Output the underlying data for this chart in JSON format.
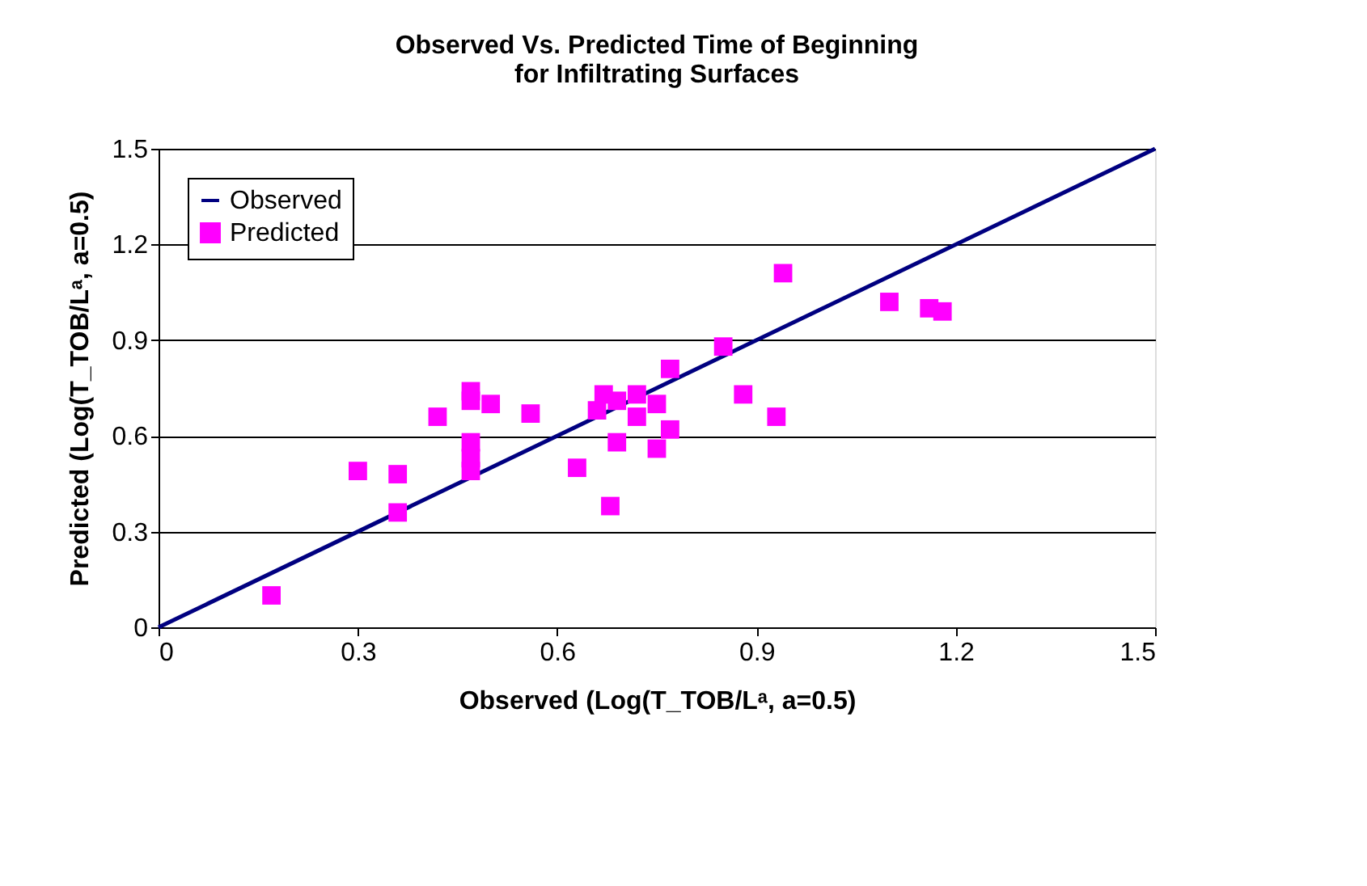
{
  "chart_data": {
    "type": "scatter",
    "title": [
      "Observed Vs. Predicted Time of Beginning",
      "for Infiltrating Surfaces"
    ],
    "xlabel": "Observed (Log(T_TOB/Lᵃ, a=0.5)",
    "ylabel": "Predicted (Log(T_TOB/Lᵃ, a=0.5)",
    "xlim": [
      0,
      1.5
    ],
    "xticks": [
      0,
      0.3,
      0.6,
      0.9,
      1.2,
      1.5
    ],
    "ylim": [
      0,
      1.5
    ],
    "yticks": [
      0,
      0.3,
      0.6,
      0.9,
      1.2,
      1.5
    ],
    "grid": "y",
    "legend": "top left",
    "series": [
      {
        "name": "Observed",
        "type": "line",
        "color": "#000080",
        "marker": "none",
        "line_style": "solid",
        "x": [
          0,
          1.5
        ],
        "values": [
          0,
          1.5
        ]
      },
      {
        "name": "Predicted",
        "color": "#ff00ff",
        "marker": "square",
        "x": [
          0.17,
          0.3,
          0.36,
          0.36,
          0.42,
          0.47,
          0.47,
          0.47,
          0.47,
          0.47,
          0.5,
          0.56,
          0.63,
          0.66,
          0.67,
          0.69,
          0.69,
          0.68,
          0.72,
          0.72,
          0.75,
          0.75,
          0.77,
          0.77,
          0.85,
          0.88,
          0.93,
          0.94,
          1.1,
          1.16,
          1.18
        ],
        "values": [
          0.1,
          0.49,
          0.48,
          0.36,
          0.66,
          0.74,
          0.71,
          0.58,
          0.53,
          0.49,
          0.7,
          0.67,
          0.5,
          0.68,
          0.73,
          0.71,
          0.58,
          0.38,
          0.73,
          0.66,
          0.7,
          0.56,
          0.62,
          0.81,
          0.88,
          0.73,
          0.66,
          1.11,
          1.02,
          1.0,
          0.99
        ]
      }
    ]
  }
}
